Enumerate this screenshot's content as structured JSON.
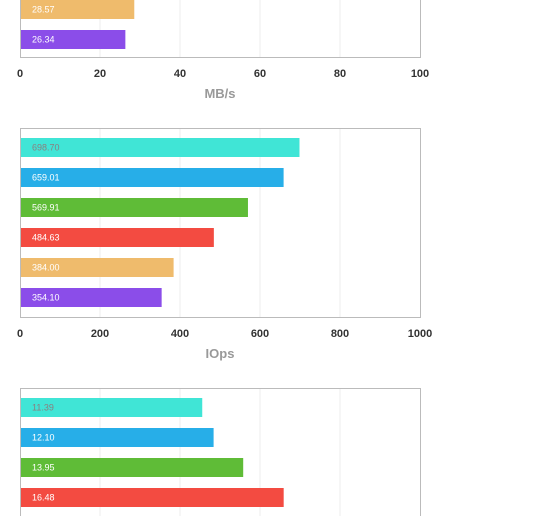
{
  "colors": [
    "#40e5d6",
    "#27aee8",
    "#5fbc37",
    "#f34b41",
    "#efbb6c",
    "#8b4de9"
  ],
  "chart_data": [
    {
      "type": "bar",
      "orientation": "horizontal",
      "xlabel": "MB/s",
      "xlim": [
        0,
        100
      ],
      "ticks": [
        "0",
        "20",
        "40",
        "60",
        "80",
        "100"
      ],
      "grid": true,
      "values": [
        28.57,
        26.34
      ],
      "labels": [
        "28.57",
        "26.34"
      ],
      "colors": [
        "#efbb6c",
        "#8b4de9"
      ]
    },
    {
      "type": "bar",
      "orientation": "horizontal",
      "xlabel": "IOps",
      "xlim": [
        0,
        1000
      ],
      "ticks": [
        "0",
        "200",
        "400",
        "600",
        "800",
        "1000"
      ],
      "grid": true,
      "values": [
        698.7,
        659.01,
        569.91,
        484.63,
        384.0,
        354.1
      ],
      "labels": [
        "698.70",
        "659.01",
        "569.91",
        "484.63",
        "384.00",
        "354.10"
      ],
      "colors": [
        "#40e5d6",
        "#27aee8",
        "#5fbc37",
        "#f34b41",
        "#efbb6c",
        "#8b4de9"
      ]
    },
    {
      "type": "bar",
      "orientation": "horizontal",
      "xlim": [
        0,
        25
      ],
      "grid": true,
      "values": [
        11.39,
        12.1,
        13.95,
        16.48
      ],
      "labels": [
        "11.39",
        "12.10",
        "13.95",
        "16.48"
      ],
      "colors": [
        "#40e5d6",
        "#27aee8",
        "#5fbc37",
        "#f34b41"
      ]
    }
  ]
}
